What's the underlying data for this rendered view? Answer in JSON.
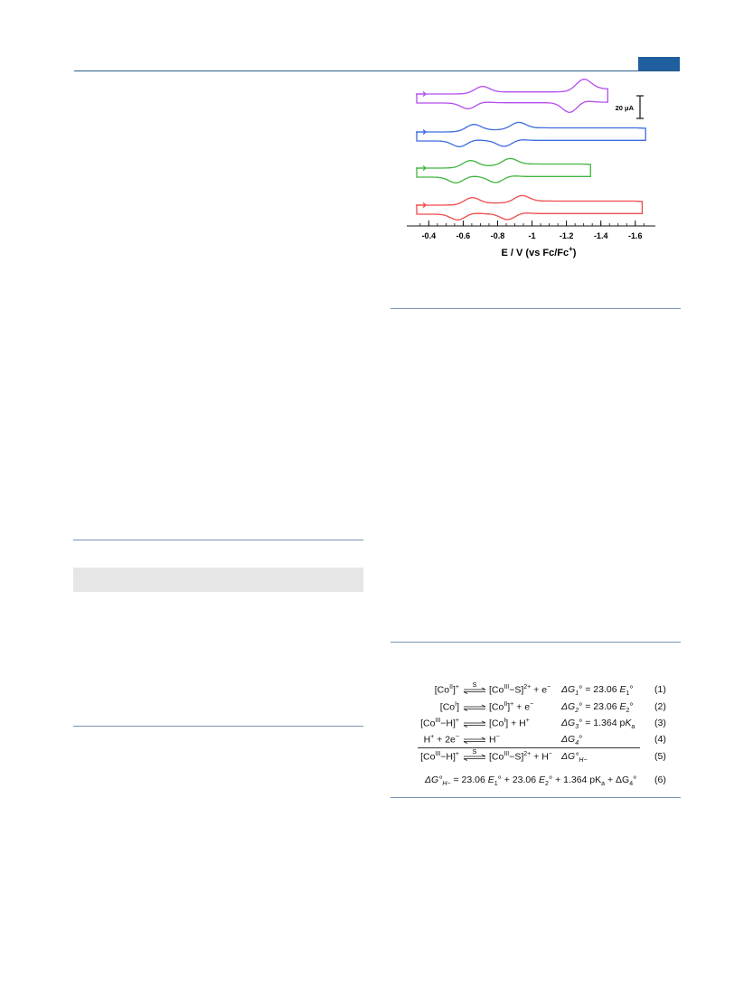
{
  "colors": {
    "header": "#1f5f9e",
    "purple": "#b44cf0",
    "blue": "#3d6be0",
    "green": "#3fb53f",
    "red": "#ef4a4a",
    "rule": "#7a93b0"
  },
  "chart_data": {
    "type": "line",
    "xlabel": "E / V (vs Fc/Fc",
    "xlabel_sup": "+",
    "ticks": [
      "-0.4",
      "-0.6",
      "-0.8",
      "-1",
      "-1.2",
      "-1.4",
      "-1.6"
    ],
    "tick_values": [
      -0.4,
      -0.6,
      -0.8,
      -1.0,
      -1.2,
      -1.4,
      -1.6
    ],
    "xlim": [
      -0.33,
      -1.68
    ],
    "scalebar_label": "20 μA",
    "series": [
      {
        "color": "#b44cf0",
        "couples": [
          -0.67,
          -1.26
        ],
        "end": -1.44
      },
      {
        "color": "#3d6be0",
        "couples": [
          -0.62,
          -0.88
        ],
        "end": -1.66
      },
      {
        "color": "#3fb53f",
        "couples": [
          -0.6,
          -0.83
        ],
        "end": -1.34
      },
      {
        "color": "#ef4a4a",
        "couples": [
          -0.61,
          -0.9
        ],
        "end": -1.64
      }
    ]
  },
  "scheme": {
    "rows": [
      {
        "left": "[Co",
        "left_sup": "II",
        "left_tail": "]",
        "left_tail_sup": "+",
        "over": "S",
        "right": "[Co",
        "right_sup": "III",
        "right_tail": "−S]",
        "right_tail_sup": "2+",
        "right_end": " + e",
        "right_end_sup": "−",
        "dg": "ΔG",
        "dg_sub": "1",
        "dg_rest": "° = 23.06 ",
        "dg_var": "E",
        "dg_var_sub": "1",
        "dg_end": "°",
        "num": "(1)"
      },
      {
        "left": "[Co",
        "left_sup": "I",
        "left_tail": "]",
        "left_tail_sup": "",
        "over": "",
        "right": "[Co",
        "right_sup": "II",
        "right_tail": "]",
        "right_tail_sup": "+",
        "right_end": " + e",
        "right_end_sup": "−",
        "dg": "ΔG",
        "dg_sub": "2",
        "dg_rest": "° = 23.06 ",
        "dg_var": "E",
        "dg_var_sub": "2",
        "dg_end": "°",
        "num": "(2)"
      },
      {
        "left": "[Co",
        "left_sup": "III",
        "left_tail": "−H]",
        "left_tail_sup": "+",
        "over": "",
        "right": "[Co",
        "right_sup": "I",
        "right_tail": "]",
        "right_tail_sup": "",
        "right_end": " + H",
        "right_end_sup": "+",
        "dg": "ΔG",
        "dg_sub": "3",
        "dg_rest": "° = 1.364 p",
        "dg_var": "K",
        "dg_var_sub": "a",
        "dg_end": "",
        "num": "(3)"
      },
      {
        "left": "H",
        "left_sup": "+",
        "left_tail": " + 2e",
        "left_tail_sup": "−",
        "over": "",
        "right": "H",
        "right_sup": "−",
        "right_tail": "",
        "right_tail_sup": "",
        "right_end": "",
        "right_end_sup": "",
        "dg": "ΔG",
        "dg_sub": "4",
        "dg_rest": "°",
        "dg_var": "",
        "dg_var_sub": "",
        "dg_end": "",
        "num": "(4)"
      },
      {
        "left": "[Co",
        "left_sup": "III",
        "left_tail": "−H]",
        "left_tail_sup": "+",
        "over": "S",
        "right": "[Co",
        "right_sup": "III",
        "right_tail": "−S]",
        "right_tail_sup": "2+",
        "right_end": " + H",
        "right_end_sup": "−",
        "dg": "ΔG°",
        "dg_sub": "H−",
        "dg_rest": "",
        "dg_var": "",
        "dg_var_sub": "",
        "dg_end": "",
        "num": "(5)"
      }
    ],
    "eq6": {
      "lhs": "ΔG°",
      "lhs_sub": "H−",
      "t1": " = 23.06 ",
      "e1": "E",
      "e1_sub": "1",
      "t2": "° + 23.06 ",
      "e2": "E",
      "e2_sub": "2",
      "t3": "° + 1.364 pK",
      "t3_sub": "a",
      "t4": " + ΔG",
      "t4_sub": "4",
      "t5": "°",
      "num": "(6)"
    }
  }
}
